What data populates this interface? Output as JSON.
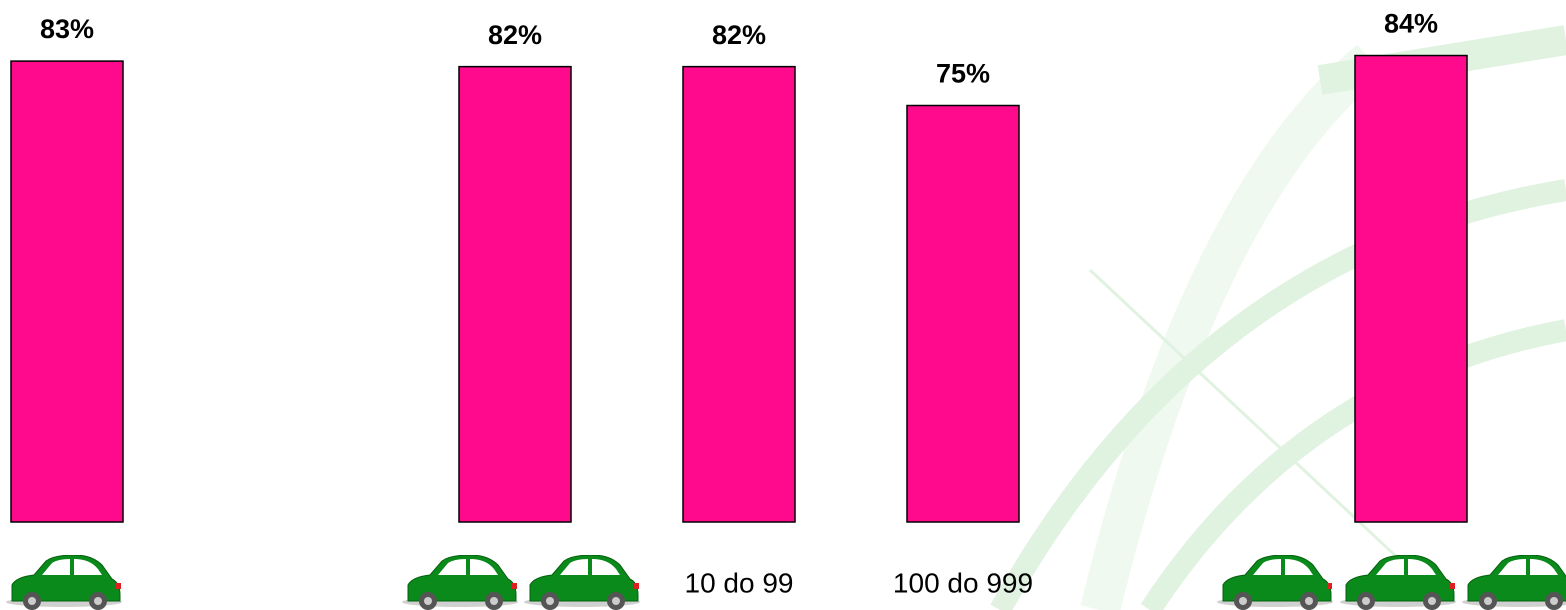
{
  "chart_data": {
    "type": "bar",
    "categories": [
      null,
      null,
      null,
      "10 do 99",
      "100 do 999",
      null,
      null
    ],
    "values": [
      83,
      null,
      82,
      82,
      75,
      null,
      84
    ],
    "value_labels": [
      "83%",
      null,
      "82%",
      "82%",
      "75%",
      null,
      "84%"
    ],
    "color": "#ff0a8c",
    "ylim": [
      0,
      94
    ]
  }
}
